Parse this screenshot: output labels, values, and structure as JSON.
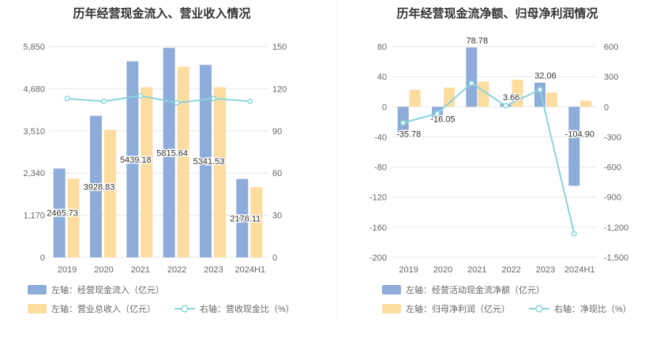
{
  "colors": {
    "bar_primary": "#8eacd9",
    "bar_secondary": "#fddca0",
    "line": "#8ad4dc",
    "grid": "#e6e6e6",
    "divider": "#eeeeee"
  },
  "chart_data": [
    {
      "type": "bar",
      "title": "历年经营现金流入、营业收入情况",
      "categories": [
        "2019",
        "2020",
        "2021",
        "2022",
        "2023",
        "2024H1"
      ],
      "left_ticks": [
        "0",
        "1,170",
        "2,340",
        "3,510",
        "4,680",
        "5,850"
      ],
      "right_ticks": [
        "0",
        "30",
        "60",
        "90",
        "120",
        "150"
      ],
      "ylim_left": [
        0,
        5850
      ],
      "ylim_right": [
        0,
        150
      ],
      "grid": true,
      "legend_position": "bottom",
      "series": [
        {
          "name": "左轴：经营现金流入（亿元）",
          "kind": "bar",
          "axis": "left",
          "values": [
            2465.73,
            3928.83,
            5439.18,
            5815.64,
            5341.53,
            2176.11
          ],
          "labels": [
            "2465.73",
            "3928.83",
            "5439.18",
            "5815.64",
            "5341.53",
            "2176.11"
          ]
        },
        {
          "name": "左轴：营业总收入（亿元）",
          "kind": "bar",
          "axis": "left",
          "values": [
            2180,
            3540,
            4720,
            5290,
            4720,
            1950
          ]
        },
        {
          "name": "右轴：营收现金比（%）",
          "kind": "line",
          "axis": "right",
          "values": [
            113,
            111,
            115,
            110,
            113,
            111
          ]
        }
      ]
    },
    {
      "type": "bar",
      "title": "历年经营现金流净额、归母净利润情况",
      "categories": [
        "2019",
        "2020",
        "2021",
        "2022",
        "2023",
        "2024H1"
      ],
      "left_ticks": [
        "-200",
        "-160",
        "-120",
        "-80",
        "-40",
        "0",
        "40",
        "80"
      ],
      "right_ticks": [
        "-1,500",
        "-1,200",
        "-900",
        "-600",
        "-300",
        "0",
        "300",
        "600"
      ],
      "ylim_left": [
        -200,
        80
      ],
      "ylim_right": [
        -1500,
        600
      ],
      "grid": true,
      "legend_position": "bottom",
      "series": [
        {
          "name": "左轴：经营活动现金流净额（亿元）",
          "kind": "bar",
          "axis": "left",
          "values": [
            -35.78,
            -16.05,
            78.78,
            3.66,
            32.06,
            -104.9
          ],
          "labels": [
            "-35.78",
            "-16.05",
            "78.78",
            "3.66",
            "32.06",
            "-104.90"
          ]
        },
        {
          "name": "左轴：归母净利润（亿元）",
          "kind": "bar",
          "axis": "left",
          "values": [
            22.5,
            25.5,
            33.5,
            36,
            19,
            8
          ]
        },
        {
          "name": "右轴：净现比（%）",
          "kind": "line",
          "axis": "right",
          "values": [
            -160,
            -65,
            235,
            10,
            170,
            -1265
          ]
        }
      ]
    }
  ]
}
